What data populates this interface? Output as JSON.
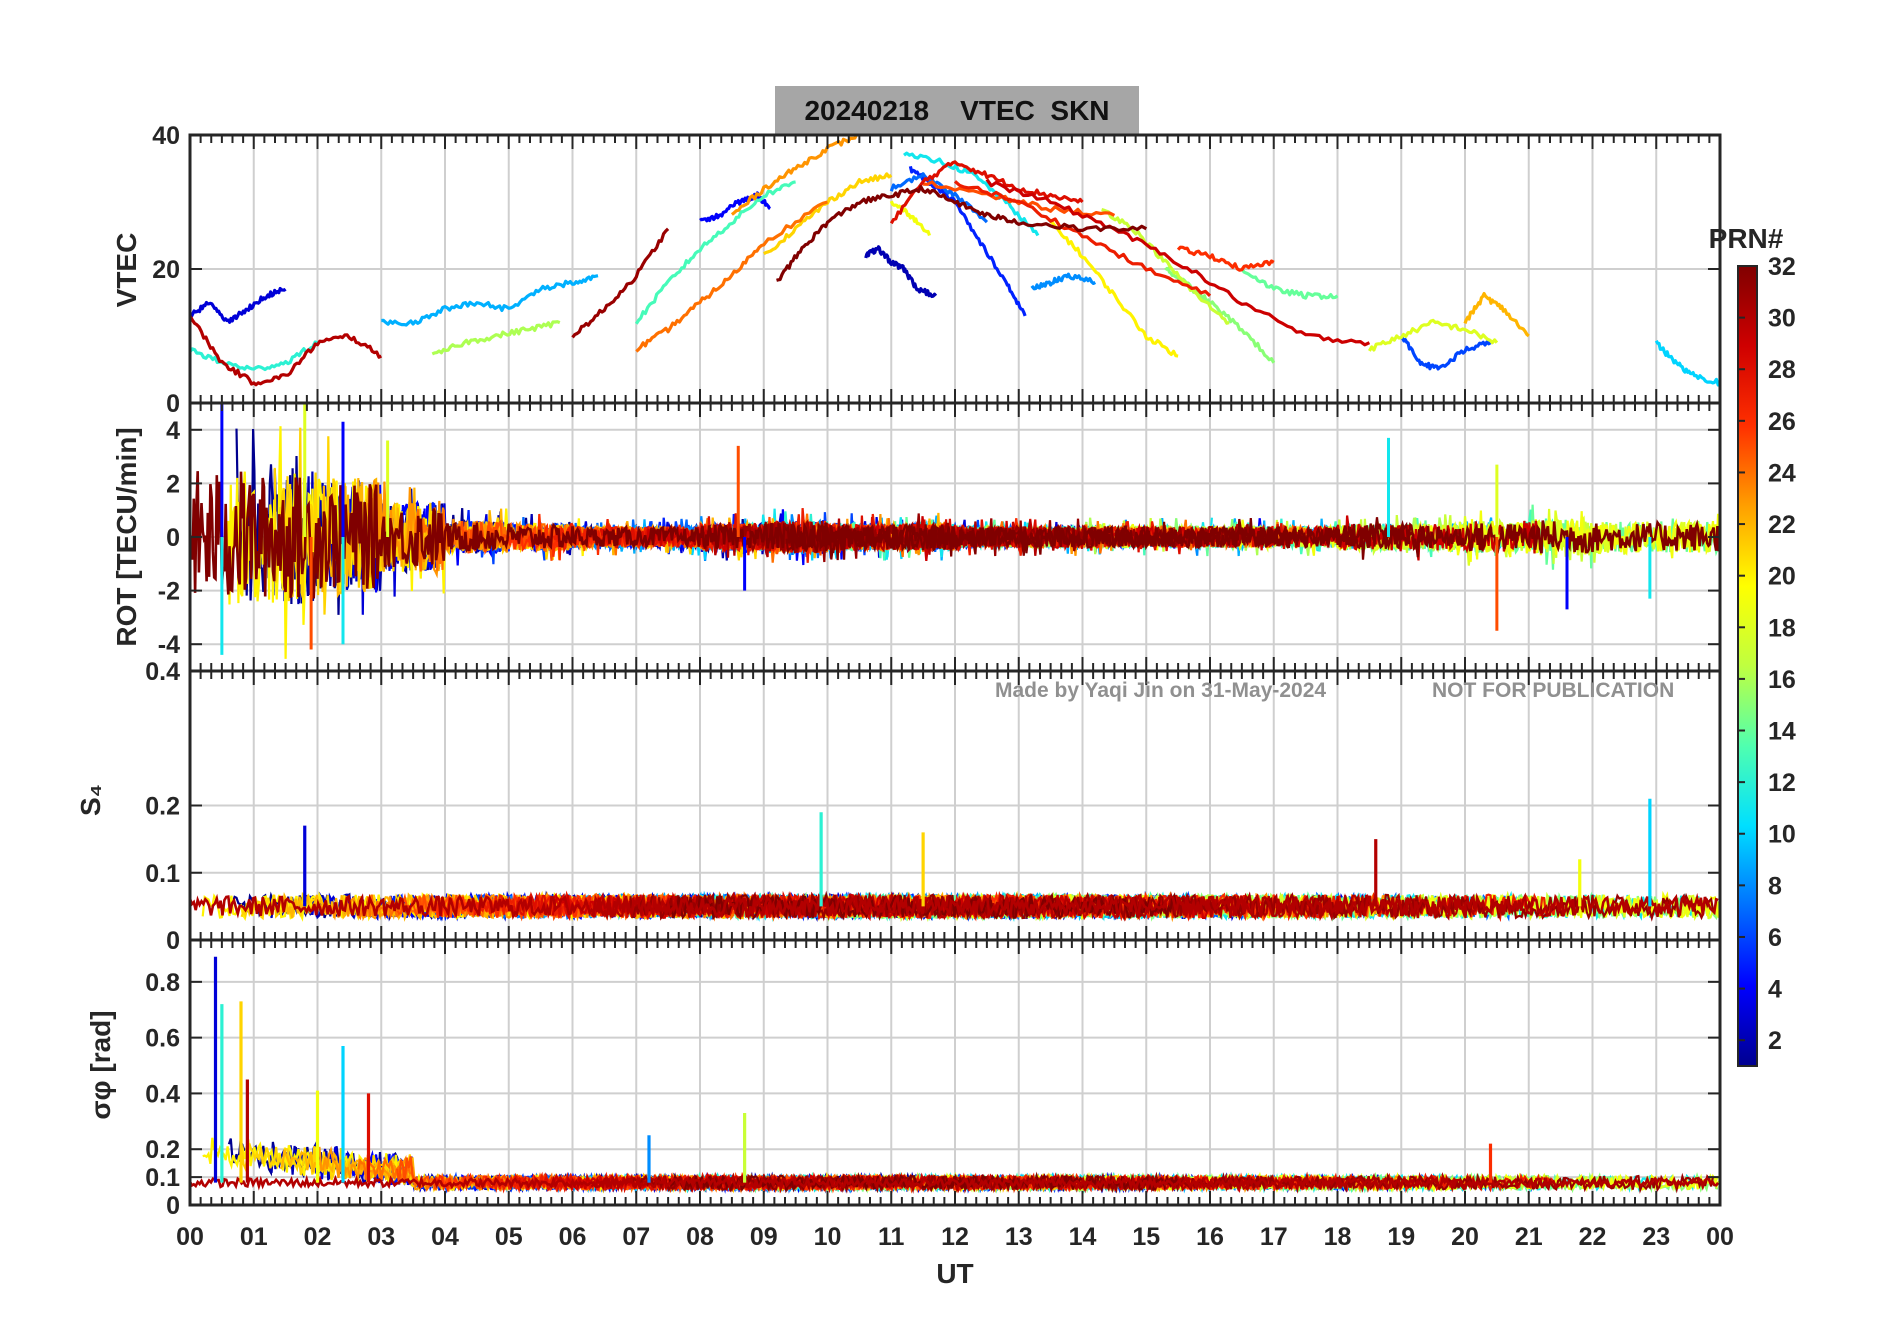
{
  "title": "20240218    VTEC  SKN",
  "watermark": {
    "left": "Made by Yaqi Jin on 31-May-2024",
    "right": "NOT FOR PUBLICATION"
  },
  "colors": {
    "title_box": "#a6a6a6",
    "grid": "#cfcfcf",
    "watermark": "#909090",
    "colormap": [
      "#00008f",
      "#0000ff",
      "#0070ff",
      "#00dfff",
      "#50ffaf",
      "#bfff40",
      "#ffff00",
      "#ff9f00",
      "#ff3000",
      "#cf0000",
      "#800000"
    ]
  },
  "chart_data": {
    "type": "line",
    "xlabel": "UT",
    "x_ticks": [
      "00",
      "01",
      "02",
      "03",
      "04",
      "05",
      "06",
      "07",
      "08",
      "09",
      "10",
      "11",
      "12",
      "13",
      "14",
      "15",
      "16",
      "17",
      "18",
      "19",
      "20",
      "21",
      "22",
      "23",
      "00"
    ],
    "xlim": [
      0,
      24
    ],
    "colorbar": {
      "label": "PRN#",
      "range": [
        1,
        32
      ],
      "ticks": [
        "2",
        "4",
        "6",
        "8",
        "10",
        "12",
        "14",
        "16",
        "18",
        "20",
        "22",
        "24",
        "26",
        "28",
        "30",
        "32"
      ],
      "colormap": "jet"
    },
    "panels": [
      {
        "ylabel": "VTEC",
        "ylim": [
          0,
          40
        ],
        "yticks": [
          "0",
          "20",
          "40"
        ],
        "yticks_values": [
          0,
          20,
          40
        ],
        "series": [
          {
            "prn": 2,
            "x": [
              10.6,
              10.8,
              11.0,
              11.2,
              11.4,
              11.7
            ],
            "y": [
              22,
              23,
              21,
              20,
              17,
              16
            ]
          },
          {
            "prn": 3,
            "x": [
              0.0,
              0.3,
              0.6,
              0.9,
              1.2,
              1.5
            ],
            "y": [
              13,
              15,
              12,
              14,
              16,
              17
            ]
          },
          {
            "prn": 4,
            "x": [
              8.0,
              8.3,
              8.6,
              8.9,
              9.1
            ],
            "y": [
              27,
              28,
              30,
              31,
              29
            ]
          },
          {
            "prn": 5,
            "x": [
              11.3,
              11.6,
              12.0,
              12.4,
              12.8,
              13.1
            ],
            "y": [
              35,
              33,
              30,
              24,
              18,
              13
            ]
          },
          {
            "prn": 6,
            "x": [
              19.0,
              19.3,
              19.6,
              20.0,
              20.4
            ],
            "y": [
              10,
              6,
              5,
              8,
              9
            ]
          },
          {
            "prn": 7,
            "x": [
              11.0,
              11.5,
              12.0,
              12.5
            ],
            "y": [
              32,
              34,
              31,
              27
            ]
          },
          {
            "prn": 8,
            "x": [
              13.2,
              13.5,
              13.8,
              14.2
            ],
            "y": [
              17,
              18,
              19,
              18
            ]
          },
          {
            "prn": 9,
            "x": [
              3.0,
              3.5,
              4.0,
              4.5,
              5.0,
              5.5,
              6.0,
              6.4
            ],
            "y": [
              12,
              12,
              14,
              15,
              14,
              17,
              18,
              19
            ]
          },
          {
            "prn": 10,
            "x": [
              23.0,
              23.3,
              23.6,
              24.0
            ],
            "y": [
              9,
              6,
              4,
              3
            ]
          },
          {
            "prn": 11,
            "x": [
              11.2,
              11.8,
              12.3,
              12.8,
              13.3
            ],
            "y": [
              37,
              36,
              34,
              30,
              25
            ]
          },
          {
            "prn": 12,
            "x": [
              0.0,
              0.5,
              1.0,
              1.5,
              2.0
            ],
            "y": [
              8,
              6,
              5,
              6,
              9
            ]
          },
          {
            "prn": 13,
            "x": [
              7.0,
              7.5,
              8.0,
              8.5,
              9.0,
              9.5
            ],
            "y": [
              12,
              18,
              23,
              27,
              31,
              33
            ]
          },
          {
            "prn": 14,
            "x": [
              16.5,
              17.0,
              17.5,
              18.0
            ],
            "y": [
              20,
              17,
              16,
              16
            ]
          },
          {
            "prn": 15,
            "x": [
              15.3,
              15.6,
              16.0,
              16.5,
              17.0
            ],
            "y": [
              20,
              18,
              15,
              11,
              6
            ]
          },
          {
            "prn": 16,
            "x": [
              3.8,
              4.3,
              4.8,
              5.3,
              5.8
            ],
            "y": [
              7,
              9,
              10,
              11,
              12
            ]
          },
          {
            "prn": 17,
            "x": [
              14.3,
              14.8,
              15.3,
              15.8,
              16.3
            ],
            "y": [
              29,
              26,
              21,
              16,
              12
            ]
          },
          {
            "prn": 18,
            "x": [
              18.5,
              19.0,
              19.5,
              20.0,
              20.5
            ],
            "y": [
              8,
              10,
              12,
              11,
              9
            ]
          },
          {
            "prn": 19,
            "x": [
              11.0,
              11.3,
              11.6
            ],
            "y": [
              30,
              28,
              25
            ]
          },
          {
            "prn": 20,
            "x": [
              13.5,
              14.0,
              14.5,
              15.0,
              15.5
            ],
            "y": [
              27,
              22,
              16,
              10,
              7
            ]
          },
          {
            "prn": 21,
            "x": [
              9.0,
              9.5,
              10.0,
              10.5,
              11.0
            ],
            "y": [
              22,
              26,
              30,
              33,
              34
            ]
          },
          {
            "prn": 22,
            "x": [
              20.0,
              20.3,
              20.6,
              21.0
            ],
            "y": [
              12,
              16,
              14,
              10
            ]
          },
          {
            "prn": 23,
            "x": [
              8.5,
              9.0,
              9.5,
              10.0,
              10.5
            ],
            "y": [
              28,
              32,
              35,
              38,
              40
            ]
          },
          {
            "prn": 24,
            "x": [
              7.0,
              7.5,
              8.0,
              8.5,
              9.0,
              10.0
            ],
            "y": [
              8,
              11,
              15,
              19,
              24,
              30
            ]
          },
          {
            "prn": 25,
            "x": [
              11.5,
              12.5,
              13.5,
              14.5
            ],
            "y": [
              33,
              31,
              29,
              28
            ]
          },
          {
            "prn": 26,
            "x": [
              15.5,
              16.0,
              16.5,
              17.0
            ],
            "y": [
              23,
              22,
              20,
              21
            ]
          },
          {
            "prn": 27,
            "x": [
              12.0,
              13.0,
              14.0,
              15.0,
              16.0
            ],
            "y": [
              33,
              30,
              25,
              20,
              16
            ]
          },
          {
            "prn": 28,
            "x": [
              11.0,
              11.5,
              12.0,
              12.5,
              13.0,
              13.5,
              14.0
            ],
            "y": [
              27,
              33,
              36,
              34,
              32,
              31,
              30
            ]
          },
          {
            "prn": 29,
            "x": [
              12.5,
              13.5,
              14.5,
              15.5,
              16.5,
              17.5,
              18.5
            ],
            "y": [
              33,
              30,
              26,
              21,
              15,
              10,
              9
            ]
          },
          {
            "prn": 30,
            "x": [
              0.0,
              0.5,
              1.0,
              1.5,
              2.0,
              2.5,
              3.0
            ],
            "y": [
              13,
              6,
              3,
              4,
              9,
              10,
              7
            ]
          },
          {
            "prn": 31,
            "x": [
              6.0,
              6.5,
              7.0,
              7.5
            ],
            "y": [
              10,
              14,
              19,
              26
            ]
          },
          {
            "prn": 32,
            "x": [
              9.2,
              9.6,
              10.0,
              10.5,
              11.0,
              11.5,
              12.0,
              12.5,
              13.0,
              14.0,
              15.0
            ],
            "y": [
              18,
              23,
              27,
              30,
              31,
              32,
              30,
              28,
              27,
              26,
              26
            ]
          }
        ]
      },
      {
        "ylabel": "ROT [TECU/min]",
        "ylim": [
          -5,
          5
        ],
        "yticks": [
          "-4",
          "-2",
          "0",
          "2",
          "4"
        ],
        "yticks_values": [
          -4,
          -2,
          0,
          2,
          4
        ],
        "noise_amplitude_by_hour": [
          2.8,
          2.6,
          2.2,
          1.3,
          0.6,
          0.5,
          0.4,
          0.4,
          0.5,
          0.6,
          0.5,
          0.5,
          0.4,
          0.4,
          0.4,
          0.4,
          0.4,
          0.4,
          0.5,
          0.5,
          0.6,
          0.7,
          0.6,
          0.6
        ],
        "spikes": [
          {
            "x": 0.5,
            "y": 5.0
          },
          {
            "x": 0.5,
            "y": -4.4
          },
          {
            "x": 1.8,
            "y": 5.0
          },
          {
            "x": 1.9,
            "y": -4.2
          },
          {
            "x": 2.4,
            "y": 4.3
          },
          {
            "x": 2.4,
            "y": -4.0
          },
          {
            "x": 3.1,
            "y": 3.6
          },
          {
            "x": 8.6,
            "y": 3.4
          },
          {
            "x": 8.7,
            "y": -2.0
          },
          {
            "x": 18.8,
            "y": 3.7
          },
          {
            "x": 20.5,
            "y": 2.7
          },
          {
            "x": 20.5,
            "y": -3.5
          },
          {
            "x": 21.6,
            "y": -2.7
          },
          {
            "x": 22.9,
            "y": -2.3
          }
        ]
      },
      {
        "ylabel": "S₄",
        "ylim": [
          0,
          0.4
        ],
        "yticks": [
          "0",
          "0.1",
          "0.2",
          "0.4"
        ],
        "yticks_values": [
          0,
          0.1,
          0.2,
          0.4
        ],
        "baseline": 0.05,
        "spikes": [
          {
            "x": 1.8,
            "y": 0.17
          },
          {
            "x": 9.9,
            "y": 0.19
          },
          {
            "x": 11.5,
            "y": 0.16
          },
          {
            "x": 18.6,
            "y": 0.15
          },
          {
            "x": 22.9,
            "y": 0.21
          },
          {
            "x": 21.8,
            "y": 0.12
          }
        ]
      },
      {
        "ylabel": "σφ [rad]",
        "ylim": [
          0,
          0.95
        ],
        "yticks": [
          "0",
          "0.1",
          "0.2",
          "0.4",
          "0.6",
          "0.8"
        ],
        "yticks_values": [
          0,
          0.1,
          0.2,
          0.4,
          0.6,
          0.8
        ],
        "baseline": 0.08,
        "spikes": [
          {
            "x": 0.4,
            "y": 0.89
          },
          {
            "x": 0.5,
            "y": 0.72
          },
          {
            "x": 0.8,
            "y": 0.73
          },
          {
            "x": 0.9,
            "y": 0.45
          },
          {
            "x": 2.4,
            "y": 0.57
          },
          {
            "x": 2.0,
            "y": 0.41
          },
          {
            "x": 2.8,
            "y": 0.4
          },
          {
            "x": 7.2,
            "y": 0.25
          },
          {
            "x": 8.7,
            "y": 0.33
          },
          {
            "x": 20.4,
            "y": 0.22
          }
        ]
      }
    ]
  }
}
